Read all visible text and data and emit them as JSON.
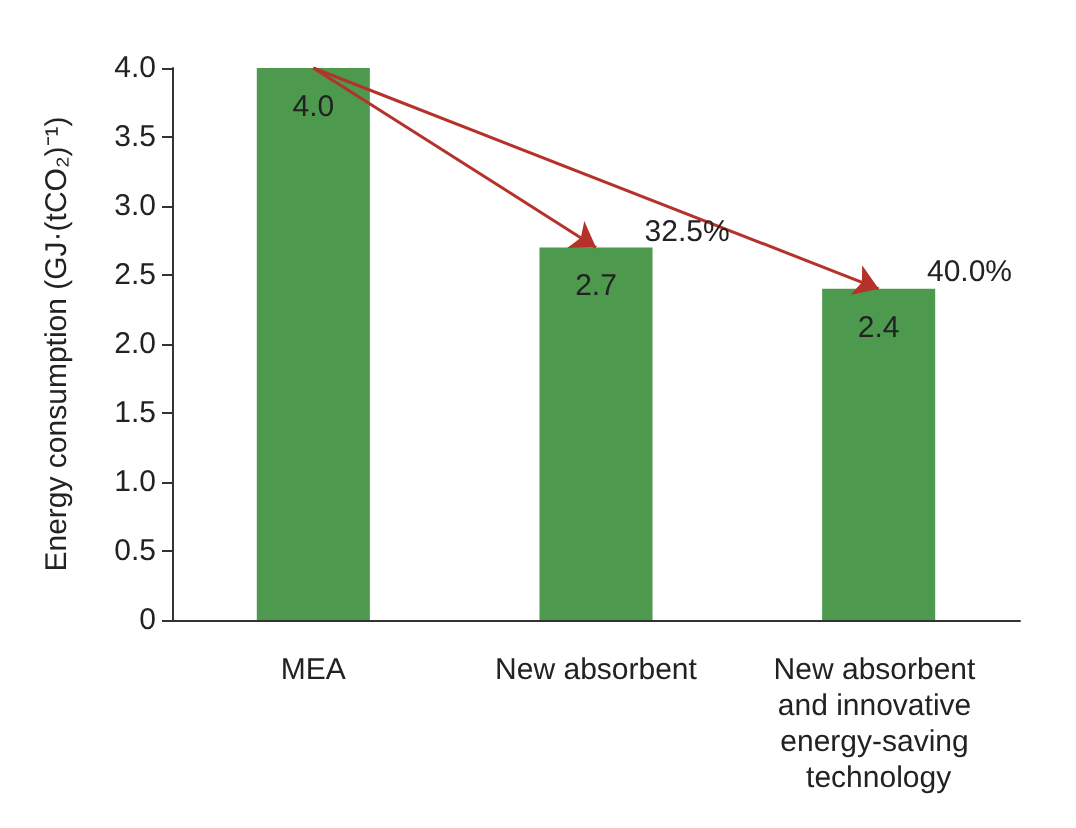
{
  "chart_data": {
    "type": "bar",
    "ylabel": "Energy consumption (GJ·(tCO₂)⁻¹)",
    "categories": [
      "MEA",
      "New absorbent",
      "New absorbent and innovative energy-saving technology"
    ],
    "values": [
      4.0,
      2.7,
      2.4
    ],
    "value_labels": [
      "4.0",
      "2.7",
      "2.4"
    ],
    "color": "#4d9a4f",
    "ylim": [
      0,
      4
    ],
    "yticks": [
      0,
      0.5,
      {
        "value": 1,
        "label": "1.0"
      },
      1.5,
      {
        "value": 2,
        "label": "2.0"
      },
      2.5,
      {
        "value": 3,
        "label": "3.0"
      },
      3.5,
      {
        "value": 4,
        "label": "4.0"
      }
    ],
    "grid": false,
    "annotations": [
      {
        "text": "32.5%",
        "x": "New absorbent",
        "y": 2.7
      },
      {
        "text": "40.0%",
        "x": "New absorbent and innovative energy-saving technology",
        "y": 2.4
      }
    ]
  }
}
